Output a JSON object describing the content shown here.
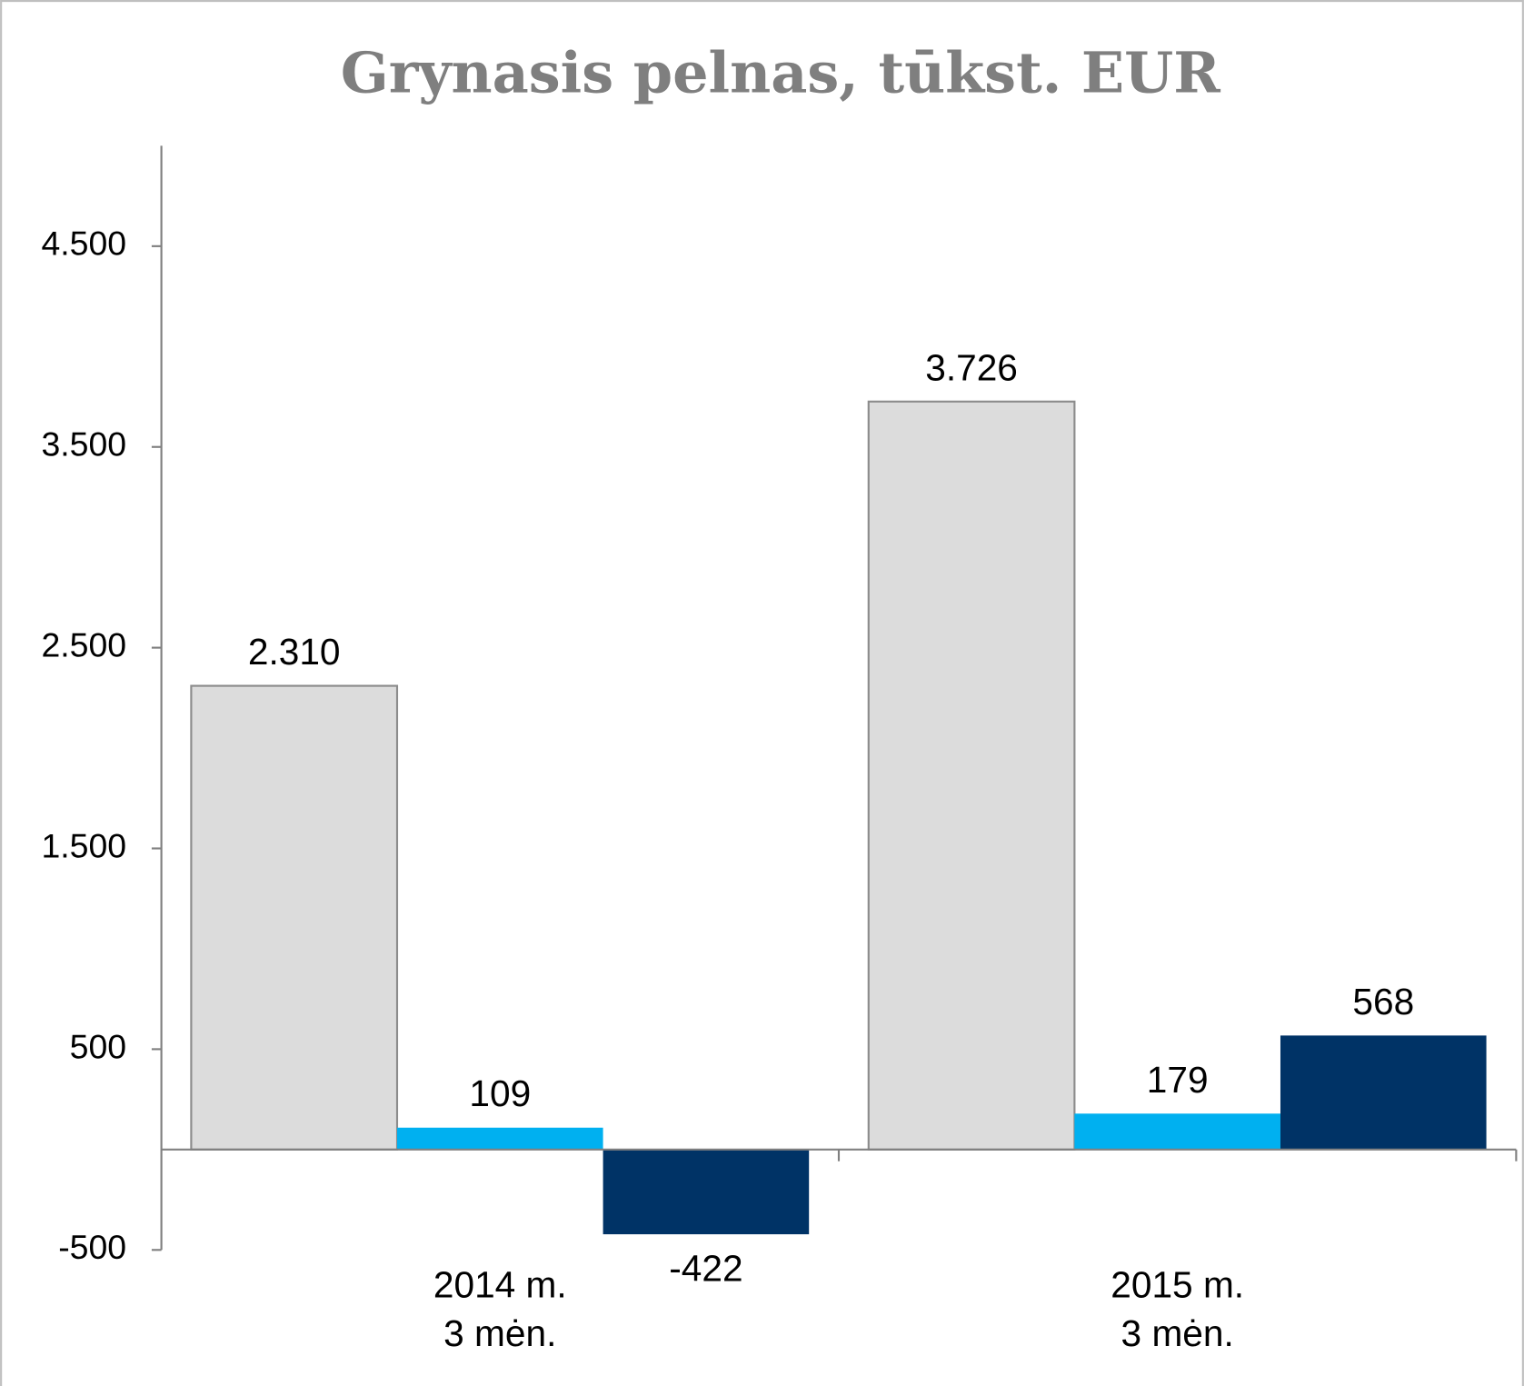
{
  "chart_data": {
    "type": "bar",
    "title": "Grynasis pelnas, tūkst. EUR",
    "categories": [
      "2014 m.\n3 mėn.",
      "2015 m.\n3 mėn."
    ],
    "series": [
      {
        "color": "#dcdcdc",
        "values": [
          2310,
          3726
        ],
        "value_labels": [
          "2.310",
          "3.726"
        ]
      },
      {
        "color": "#00b0f0",
        "values": [
          109,
          179
        ]
      },
      {
        "color": "#003366",
        "values": [
          -422,
          568
        ]
      }
    ],
    "ylim": [
      -500,
      5000
    ],
    "yticks": [
      -500,
      500,
      {
        "value": 1500,
        "label": "1.500"
      },
      {
        "value": 2500,
        "label": "2.500"
      },
      {
        "value": 3500,
        "label": "3.500"
      },
      {
        "value": 4500,
        "label": "4.500"
      }
    ],
    "grid": false
  }
}
